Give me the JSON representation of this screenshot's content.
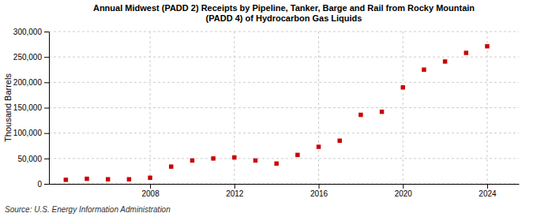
{
  "chart_data": {
    "type": "scatter",
    "title": "Annual Midwest (PADD 2) Receipts by Pipeline, Tanker, Barge and Rail from Rocky Mountain\n(PADD 4) of Hydrocarbon Gas Liquids",
    "ylabel": "Thousand Barrels",
    "source": "Source: U.S. Energy Information Administration",
    "x": [
      2004,
      2005,
      2006,
      2007,
      2008,
      2009,
      2010,
      2011,
      2012,
      2013,
      2014,
      2015,
      2016,
      2017,
      2018,
      2019,
      2020,
      2021,
      2022,
      2023,
      2024
    ],
    "values": [
      8000,
      10000,
      9000,
      9000,
      12000,
      34000,
      46000,
      50000,
      52000,
      46000,
      40000,
      57000,
      73000,
      85000,
      136000,
      142000,
      190000,
      225000,
      241000,
      258000,
      271000
    ],
    "color": "#CC0000",
    "marker": "square",
    "xlim": [
      2003.2,
      2025.5
    ],
    "xticks": [
      2008,
      2012,
      2016,
      2020,
      2024
    ],
    "ylim": [
      0,
      300000
    ],
    "yticks": [
      0,
      {
        "value": 50000,
        "label": "50,000"
      },
      {
        "value": 100000,
        "label": "100,000"
      },
      {
        "value": 150000,
        "label": "150,000"
      },
      {
        "value": 200000,
        "label": "200,000"
      },
      {
        "value": 250000,
        "label": "250,000"
      },
      {
        "value": 300000,
        "label": "300,000"
      }
    ],
    "grid": true
  }
}
